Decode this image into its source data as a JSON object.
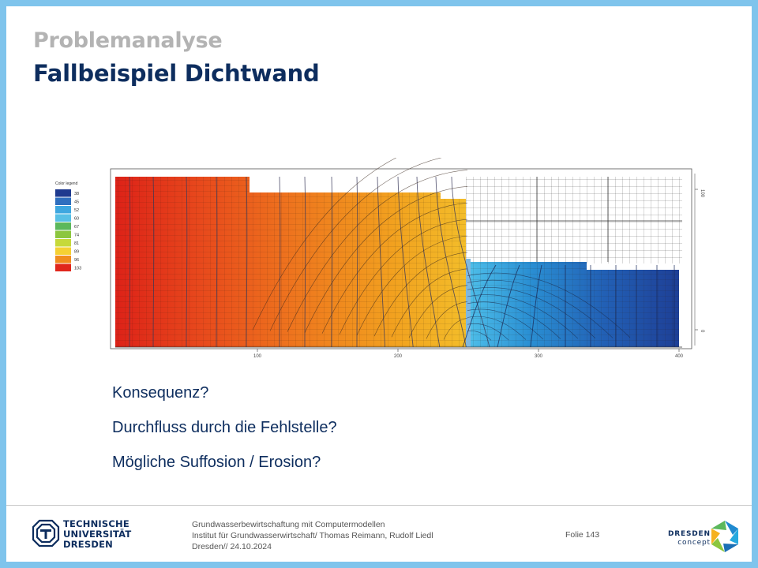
{
  "header": {
    "subtitle": "Problemanalyse",
    "title": "Fallbeispiel Dichtwand"
  },
  "figure": {
    "legend_title": "Color legend",
    "legend": [
      {
        "value": "38",
        "color": "#1f3a8f"
      },
      {
        "value": "45",
        "color": "#2f6fbf"
      },
      {
        "value": "52",
        "color": "#3ea7e0"
      },
      {
        "value": "60",
        "color": "#58c0e6"
      },
      {
        "value": "67",
        "color": "#5cb85c"
      },
      {
        "value": "74",
        "color": "#8cc63f"
      },
      {
        "value": "81",
        "color": "#c6d93a"
      },
      {
        "value": "89",
        "color": "#f5d033"
      },
      {
        "value": "96",
        "color": "#f08c1e"
      },
      {
        "value": "103",
        "color": "#e0261c"
      }
    ],
    "x_ticks": [
      "100",
      "200",
      "300",
      "400"
    ],
    "y_ticks": [
      "100",
      "0"
    ]
  },
  "bullets": [
    "Konsequenz?",
    "Durchfluss durch die Fehlstelle?",
    "Mögliche Suffosion / Erosion?"
  ],
  "footer": {
    "line1": "Grundwasserbewirtschaftung mit Computermodellen",
    "line2": "Institut für Grundwasserwirtschaft/ Thomas Reimann, Rudolf Liedl",
    "line3": "Dresden// 24.10.2024",
    "folio": "Folie 143",
    "tu_line1": "TECHNISCHE",
    "tu_line2": "UNIVERSITÄT",
    "tu_line3": "DRESDEN",
    "dd_line1": "DRESDEN",
    "dd_line2": "concept"
  }
}
